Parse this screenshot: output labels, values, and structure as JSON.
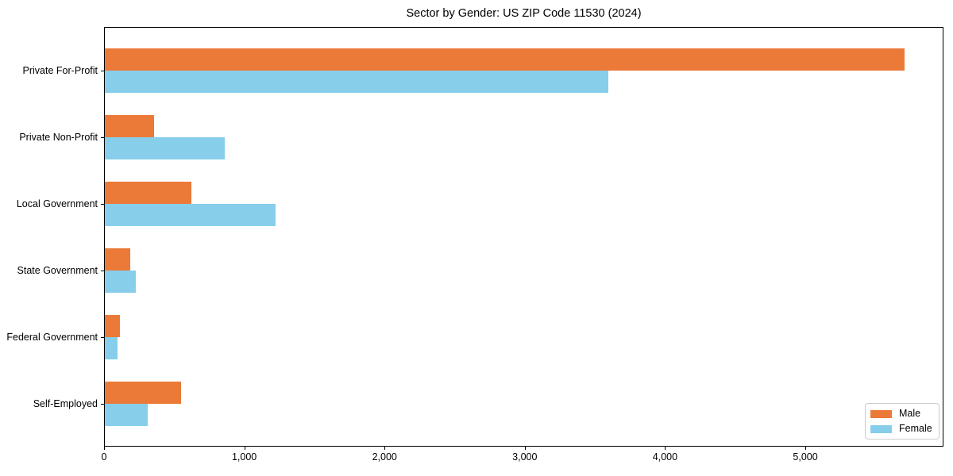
{
  "chart_data": {
    "type": "bar",
    "orientation": "horizontal",
    "title": "Sector by Gender: US ZIP Code 11530 (2024)",
    "categories": [
      "Private For-Profit",
      "Private Non-Profit",
      "Local Government",
      "State Government",
      "Federal Government",
      "Self-Employed"
    ],
    "series": [
      {
        "name": "Male",
        "color": "#EB7A38",
        "values": [
          5700,
          350,
          620,
          180,
          105,
          545
        ]
      },
      {
        "name": "Female",
        "color": "#87CEEB",
        "values": [
          3590,
          855,
          1220,
          220,
          90,
          305
        ]
      }
    ],
    "xlabel": "",
    "ylabel": "",
    "xlim": [
      0,
      5985
    ],
    "xticks": [
      0,
      1000,
      2000,
      3000,
      4000,
      5000
    ],
    "xtick_labels": [
      "0",
      "1,000",
      "2,000",
      "3,000",
      "4,000",
      "5,000"
    ],
    "grid": false,
    "legend_position": "lower right",
    "spine_color": "#000000",
    "background_color": "#ffffff"
  }
}
